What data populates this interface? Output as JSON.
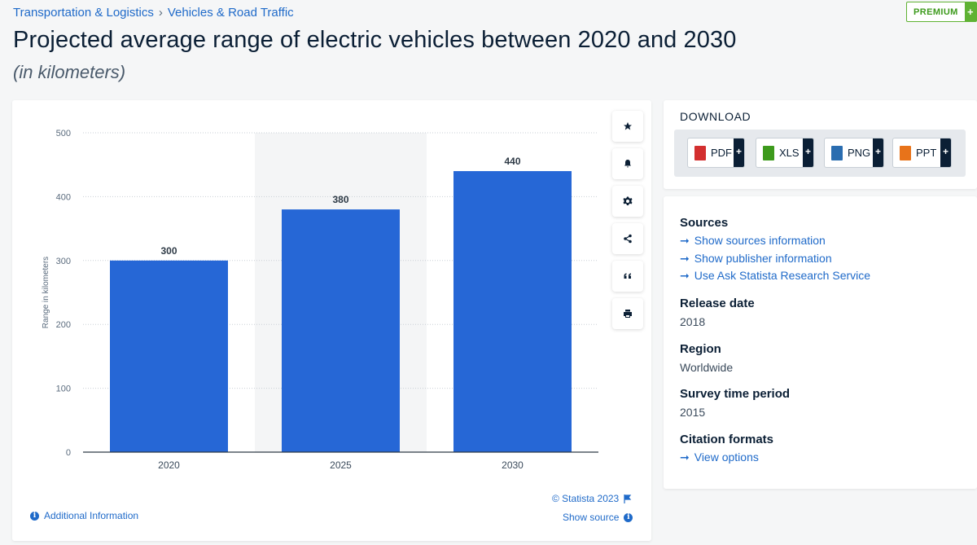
{
  "breadcrumb": {
    "item1": "Transportation & Logistics",
    "sep": "›",
    "item2": "Vehicles & Road Traffic"
  },
  "premium": {
    "label": "PREMIUM",
    "plus": "+"
  },
  "title": "Projected average range of electric vehicles between 2020 and 2030",
  "subtitle": "(in kilometers)",
  "chart_data": {
    "type": "bar",
    "categories": [
      "2020",
      "2025",
      "2030"
    ],
    "values": [
      300,
      380,
      440
    ],
    "ylabel": "Range in kilometers",
    "ylim": [
      0,
      500
    ],
    "yticks": [
      0,
      100,
      200,
      300,
      400,
      500
    ],
    "grid": true,
    "bar_color": "#2667d6",
    "highlight_band": "2025"
  },
  "credits": {
    "statista": "© Statista 2023",
    "show_source": "Show source",
    "additional_info": "Additional Information"
  },
  "tools": [
    "star-icon",
    "bell-icon",
    "gear-icon",
    "share-icon",
    "quote-icon",
    "print-icon"
  ],
  "download": {
    "heading": "DOWNLOAD",
    "buttons": [
      {
        "label": "PDF",
        "color": "#d32f2f"
      },
      {
        "label": "XLS",
        "color": "#3d9a1c"
      },
      {
        "label": "PNG",
        "color": "#2a6db0"
      },
      {
        "label": "PPT",
        "color": "#e8731a"
      }
    ],
    "plus": "+"
  },
  "meta": {
    "sources_heading": "Sources",
    "sources_links": [
      "Show sources information",
      "Show publisher information",
      "Use Ask Statista Research Service"
    ],
    "release_heading": "Release date",
    "release_value": "2018",
    "region_heading": "Region",
    "region_value": "Worldwide",
    "survey_heading": "Survey time period",
    "survey_value": "2015",
    "citation_heading": "Citation formats",
    "citation_link": "View options"
  },
  "colors": {
    "accent": "#1f6ac9",
    "bar": "#2667d6",
    "premium": "#5fb233"
  }
}
